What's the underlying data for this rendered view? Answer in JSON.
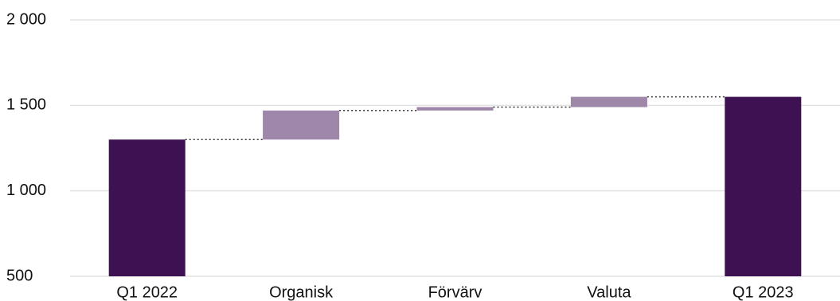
{
  "chart_data": {
    "type": "waterfall",
    "categories": [
      "Q1 2022",
      "Organisk",
      "Förvärv",
      "Valuta",
      "Q1 2023"
    ],
    "values": [
      1300,
      170,
      20,
      60,
      1550
    ],
    "totals": [
      true,
      false,
      false,
      false,
      true
    ],
    "total_color": "#3d1152",
    "delta_color": "#9e87a9",
    "ylim": [
      500,
      2000
    ],
    "yticks": [
      500,
      {
        "value": 1000,
        "label": "1 000"
      },
      {
        "value": 1500,
        "label": "1 500"
      },
      {
        "value": 2000,
        "label": "2 000"
      }
    ],
    "grid": true
  }
}
